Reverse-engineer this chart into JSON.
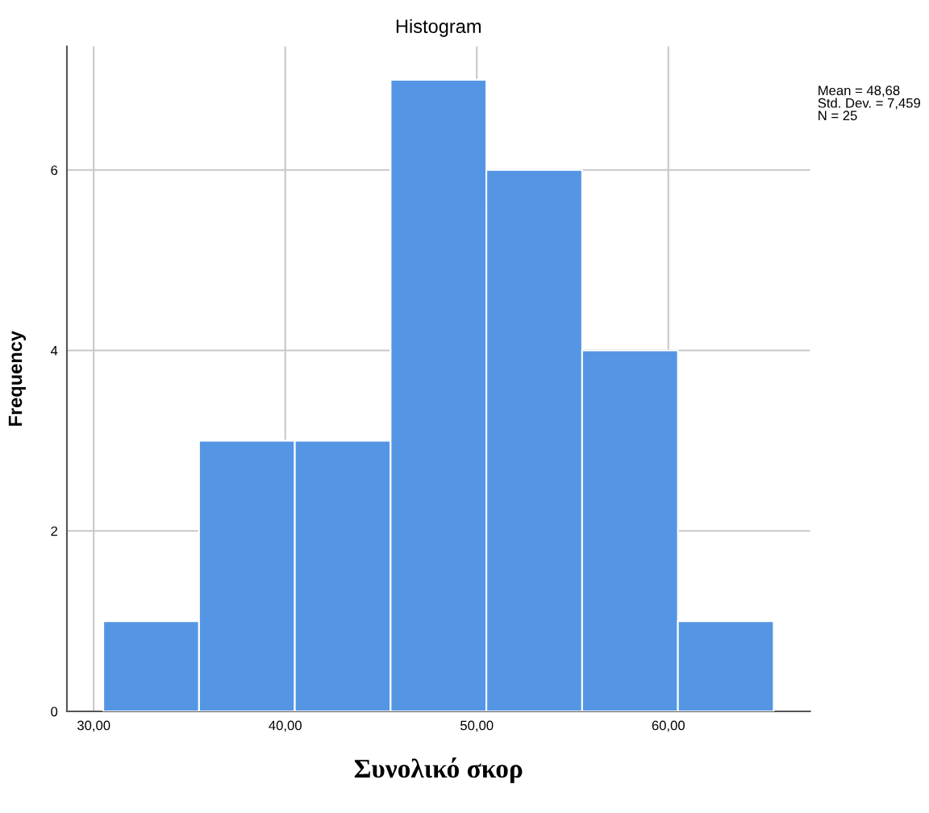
{
  "chart_data": {
    "type": "histogram",
    "title": "Histogram",
    "xlabel": "Συνολικό σκορ",
    "ylabel": "Frequency",
    "bins": [
      30.5,
      35.5,
      40.5,
      45.5,
      50.5,
      55.5,
      60.5,
      65.5
    ],
    "values": [
      1,
      3,
      3,
      7,
      6,
      4,
      1
    ],
    "color": "#5596e4",
    "xlim": [
      28.6,
      67.4
    ],
    "ylim": [
      0,
      7.37
    ],
    "xticks": [
      {
        "value": 30,
        "label": "30,00"
      },
      {
        "value": 40,
        "label": "40,00"
      },
      {
        "value": 50,
        "label": "50,00"
      },
      {
        "value": 60,
        "label": "60,00"
      }
    ],
    "yticks": [
      0,
      2,
      4,
      6
    ],
    "grid": true,
    "annotations": [
      "Mean = 48,68\nStd. Dev. = 7,459\nN = 25"
    ]
  }
}
